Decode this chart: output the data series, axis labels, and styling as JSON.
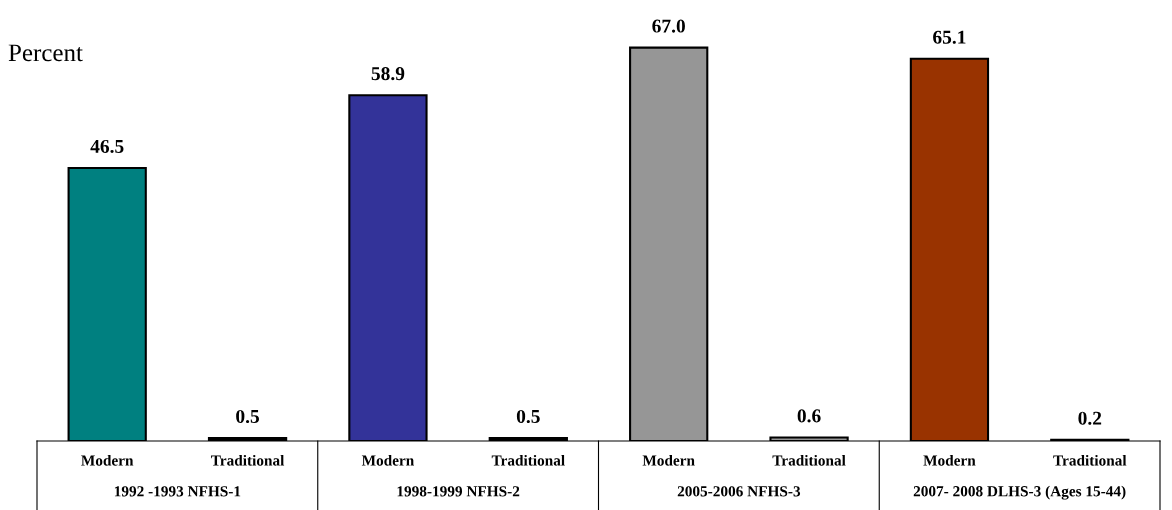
{
  "chart_data": {
    "type": "bar",
    "ylabel": "Percent",
    "categories": [
      "Modern",
      "Traditional",
      "Modern",
      "Traditional",
      "Modern",
      "Traditional",
      "Modern",
      "Traditional"
    ],
    "values": [
      46.5,
      0.5,
      58.9,
      0.5,
      67.0,
      0.6,
      65.1,
      0.2
    ],
    "value_labels": [
      "46.5",
      "0.5",
      "58.9",
      "0.5",
      "67.0",
      "0.6",
      "65.1",
      "0.2"
    ],
    "colors": [
      "#008080",
      "#000000",
      "#333399",
      "#000000",
      "#969696",
      "#969696",
      "#993300",
      "#000000"
    ],
    "tick_labels": "x",
    "grid": false,
    "annotations": [
      "1992 -1993 NFHS-1",
      "1998-1999 NFHS-2",
      "2005-2006 NFHS-3",
      "2007- 2008 DLHS-3 (Ages 15-44)"
    ]
  }
}
